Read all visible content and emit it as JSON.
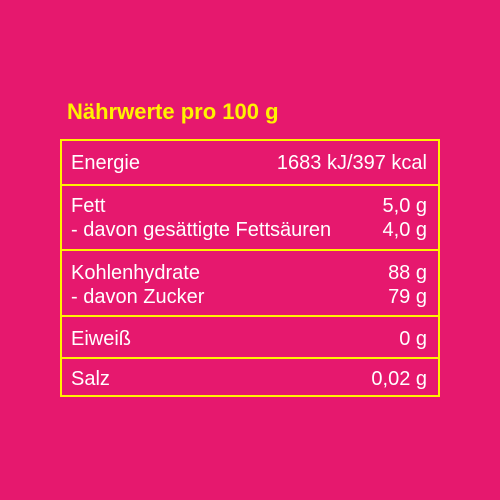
{
  "title": "Nährwerte pro 100 g",
  "sections": [
    [
      {
        "label": "Energie",
        "value": "1683 kJ/397 kcal"
      }
    ],
    [
      {
        "label": "Fett",
        "value": "5,0 g"
      },
      {
        "label": "- davon gesättigte Fettsäuren",
        "value": "4,0 g"
      }
    ],
    [
      {
        "label": "Kohlenhydrate",
        "value": "88 g"
      },
      {
        "label": "- davon Zucker",
        "value": "79 g"
      }
    ],
    [
      {
        "label": "Eiweiß",
        "value": "0 g"
      }
    ],
    [
      {
        "label": "Salz",
        "value": "0,02 g"
      }
    ]
  ],
  "colors": {
    "background": "#e6186e",
    "accent": "#fff200",
    "text": "#ffffff"
  }
}
